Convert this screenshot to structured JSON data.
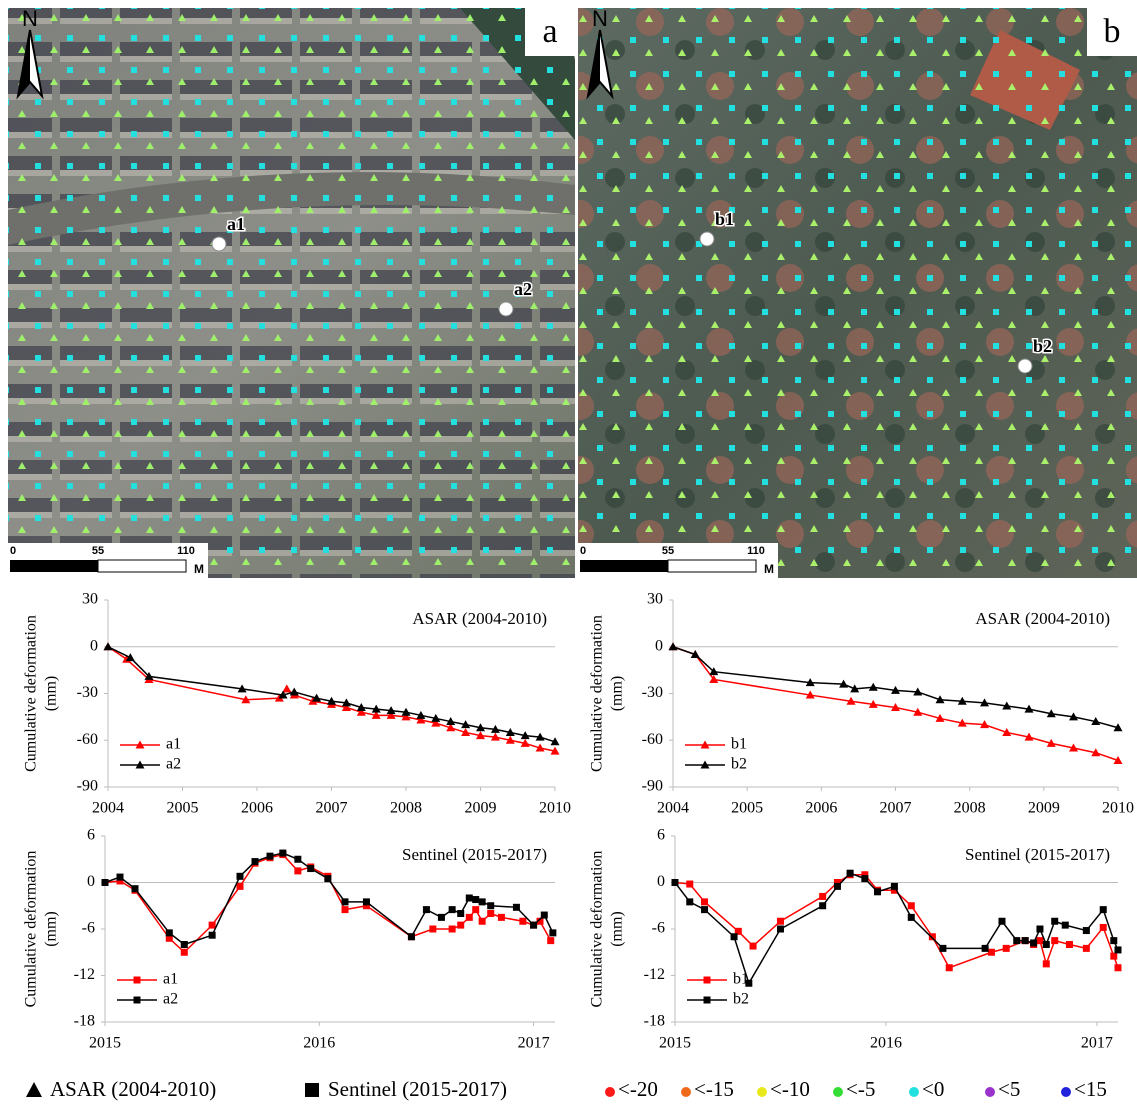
{
  "maps": [
    {
      "label": "a",
      "north": "N",
      "points": [
        "a1",
        "a2"
      ],
      "scale_ticks": [
        0,
        55,
        110
      ],
      "scale_unit": "M"
    },
    {
      "label": "b",
      "north": "N",
      "points": [
        "b1",
        "b2"
      ],
      "scale_ticks": [
        0,
        55,
        110
      ],
      "scale_unit": "M"
    }
  ],
  "chart_data": [
    {
      "type": "line",
      "annotation": "ASAR (2004-2010)",
      "ylabel": "Cumulative deformation",
      "ylabel_unit": "(mm)",
      "xlim": [
        2004,
        2010
      ],
      "xticks": [
        2004,
        2005,
        2006,
        2007,
        2008,
        2009,
        2010
      ],
      "ylim": [
        -90,
        30
      ],
      "yticks": [
        -90,
        -60,
        -30,
        0,
        30
      ],
      "zero_line": true,
      "legend": "lower-left",
      "marker": "triangle",
      "series": [
        {
          "name": "a1",
          "color": "#ff0000",
          "x": [
            2004,
            2004.25,
            2004.55,
            2005.85,
            2006.3,
            2006.4,
            2006.5,
            2006.75,
            2007,
            2007.2,
            2007.4,
            2007.6,
            2007.8,
            2008,
            2008.2,
            2008.4,
            2008.6,
            2008.8,
            2009,
            2009.2,
            2009.4,
            2009.6,
            2009.8,
            2010
          ],
          "values": [
            0,
            -8,
            -21,
            -34,
            -33,
            -27,
            -31,
            -35,
            -37,
            -39,
            -42,
            -44,
            -44,
            -45,
            -47,
            -49,
            -52,
            -55,
            -57,
            -58,
            -60,
            -62,
            -65,
            -67
          ]
        },
        {
          "name": "a2",
          "color": "#000000",
          "x": [
            2004,
            2004.3,
            2004.55,
            2005.8,
            2006.35,
            2006.5,
            2006.8,
            2007,
            2007.2,
            2007.4,
            2007.6,
            2007.8,
            2008,
            2008.2,
            2008.4,
            2008.6,
            2008.8,
            2009,
            2009.2,
            2009.4,
            2009.6,
            2009.8,
            2010
          ],
          "values": [
            0,
            -7,
            -19,
            -27,
            -31,
            -29,
            -33,
            -35,
            -36,
            -39,
            -40,
            -41,
            -42,
            -44,
            -46,
            -48,
            -50,
            -52,
            -53,
            -55,
            -57,
            -58,
            -61
          ]
        }
      ]
    },
    {
      "type": "line",
      "annotation": "ASAR (2004-2010)",
      "ylabel": "Cumulative deformation",
      "ylabel_unit": "(mm)",
      "xlim": [
        2004,
        2010
      ],
      "xticks": [
        2004,
        2005,
        2006,
        2007,
        2008,
        2009,
        2010
      ],
      "ylim": [
        -90,
        30
      ],
      "yticks": [
        -90,
        -60,
        -30,
        0,
        30
      ],
      "zero_line": true,
      "legend": "lower-left",
      "marker": "triangle",
      "series": [
        {
          "name": "b1",
          "color": "#ff0000",
          "x": [
            2004,
            2004.3,
            2004.55,
            2005.85,
            2006.4,
            2006.7,
            2007,
            2007.3,
            2007.6,
            2007.9,
            2008.2,
            2008.5,
            2008.8,
            2009.1,
            2009.4,
            2009.7,
            2010
          ],
          "values": [
            0,
            -5,
            -21,
            -31,
            -35,
            -37,
            -39,
            -42,
            -46,
            -49,
            -50,
            -55,
            -58,
            -62,
            -65,
            -68,
            -73
          ]
        },
        {
          "name": "b2",
          "color": "#000000",
          "x": [
            2004,
            2004.3,
            2004.55,
            2005.85,
            2006.3,
            2006.45,
            2006.7,
            2007,
            2007.3,
            2007.6,
            2007.9,
            2008.2,
            2008.5,
            2008.8,
            2009.1,
            2009.4,
            2009.7,
            2010
          ],
          "values": [
            0,
            -5,
            -16,
            -23,
            -24,
            -27,
            -26,
            -28,
            -29,
            -34,
            -35,
            -36,
            -38,
            -40,
            -43,
            -45,
            -48,
            -52
          ]
        }
      ]
    },
    {
      "type": "line",
      "annotation": "Sentinel (2015-2017)",
      "ylabel": "Cumulative deformation",
      "ylabel_unit": "(mm)",
      "xlim": [
        2015,
        2017.1
      ],
      "xticks": [
        2015,
        2016,
        2017
      ],
      "ylim": [
        -18,
        6
      ],
      "yticks": [
        -18,
        -12,
        -6,
        0,
        6
      ],
      "zero_line": true,
      "legend": "lower-left",
      "marker": "square",
      "series": [
        {
          "name": "a1",
          "color": "#ff0000",
          "x": [
            2015,
            2015.07,
            2015.14,
            2015.3,
            2015.37,
            2015.5,
            2015.63,
            2015.7,
            2015.77,
            2015.83,
            2015.9,
            2015.96,
            2016.04,
            2016.12,
            2016.22,
            2016.43,
            2016.53,
            2016.62,
            2016.66,
            2016.7,
            2016.73,
            2016.76,
            2016.8,
            2016.85,
            2016.95,
            2017,
            2017.03,
            2017.08
          ],
          "values": [
            0,
            0.2,
            -1,
            -7.2,
            -9,
            -5.5,
            -0.5,
            2.5,
            3.2,
            3.6,
            1.5,
            2,
            0.8,
            -3.5,
            -3,
            -7,
            -6,
            -6,
            -5.5,
            -4.5,
            -3.5,
            -5,
            -4,
            -4.5,
            -5,
            -5.5,
            -5,
            -7.5
          ]
        },
        {
          "name": "a2",
          "color": "#000000",
          "x": [
            2015,
            2015.07,
            2015.14,
            2015.3,
            2015.37,
            2015.5,
            2015.63,
            2015.7,
            2015.77,
            2015.83,
            2015.9,
            2015.96,
            2016.04,
            2016.12,
            2016.22,
            2016.43,
            2016.5,
            2016.57,
            2016.62,
            2016.66,
            2016.7,
            2016.73,
            2016.76,
            2016.8,
            2016.92,
            2017,
            2017.05,
            2017.09
          ],
          "values": [
            0,
            0.7,
            -0.8,
            -6.5,
            -8,
            -6.8,
            0.8,
            2.7,
            3.4,
            3.8,
            3,
            1.8,
            0.5,
            -2.5,
            -2.5,
            -7,
            -3.5,
            -4.5,
            -3.5,
            -4,
            -2,
            -2.2,
            -2.5,
            -3,
            -3.2,
            -5.5,
            -4.2,
            -6.5
          ]
        }
      ]
    },
    {
      "type": "line",
      "annotation": "Sentinel (2015-2017)",
      "ylabel": "Cumulative deformation",
      "ylabel_unit": "(mm)",
      "xlim": [
        2015,
        2017.1
      ],
      "xticks": [
        2015,
        2016,
        2017
      ],
      "ylim": [
        -18,
        6
      ],
      "yticks": [
        -18,
        -12,
        -6,
        0,
        6
      ],
      "zero_line": true,
      "legend": "lower-left",
      "marker": "square",
      "series": [
        {
          "name": "b1",
          "color": "#ff0000",
          "x": [
            2015,
            2015.07,
            2015.14,
            2015.3,
            2015.37,
            2015.5,
            2015.7,
            2015.77,
            2015.83,
            2015.9,
            2015.96,
            2016.04,
            2016.12,
            2016.22,
            2016.3,
            2016.5,
            2016.57,
            2016.66,
            2016.7,
            2016.73,
            2016.76,
            2016.8,
            2016.87,
            2016.95,
            2017.03,
            2017.08,
            2017.1
          ],
          "values": [
            0,
            -0.2,
            -2.5,
            -6.3,
            -8.2,
            -5,
            -1.8,
            0,
            1,
            1,
            -1,
            -1,
            -3,
            -7,
            -11,
            -9,
            -8.5,
            -7.5,
            -8,
            -7.5,
            -10.5,
            -7.5,
            -8,
            -8.5,
            -5.8,
            -9.5,
            -11
          ]
        },
        {
          "name": "b2",
          "color": "#000000",
          "x": [
            2015,
            2015.07,
            2015.14,
            2015.28,
            2015.35,
            2015.5,
            2015.7,
            2015.77,
            2015.83,
            2015.9,
            2015.96,
            2016.04,
            2016.12,
            2016.27,
            2016.47,
            2016.55,
            2016.62,
            2016.66,
            2016.7,
            2016.73,
            2016.76,
            2016.8,
            2016.85,
            2016.95,
            2017.03,
            2017.08,
            2017.1
          ],
          "values": [
            0,
            -2.5,
            -3.5,
            -7,
            -13,
            -6,
            -3,
            -0.5,
            1.2,
            0.5,
            -1.2,
            -0.5,
            -4.5,
            -8.5,
            -8.5,
            -5,
            -7.5,
            -7.5,
            -7.8,
            -6,
            -8,
            -5,
            -5.5,
            -6.2,
            -3.5,
            -7.5,
            -8.7
          ]
        }
      ]
    }
  ],
  "legend": {
    "symbols": [
      {
        "marker": "triangle",
        "label": "ASAR (2004-2010)"
      },
      {
        "marker": "square",
        "label": "Sentinel (2015-2017)"
      }
    ],
    "classes": [
      {
        "label": "<-20",
        "color": "#ff1a1a"
      },
      {
        "label": "<-15",
        "color": "#ee6a1a"
      },
      {
        "label": "<-10",
        "color": "#e8e81a"
      },
      {
        "label": "<-5",
        "color": "#33dd33"
      },
      {
        "label": "<0",
        "color": "#22e0e0"
      },
      {
        "label": "<5",
        "color": "#9933cc"
      },
      {
        "label": "<15",
        "color": "#2222dd"
      }
    ]
  }
}
